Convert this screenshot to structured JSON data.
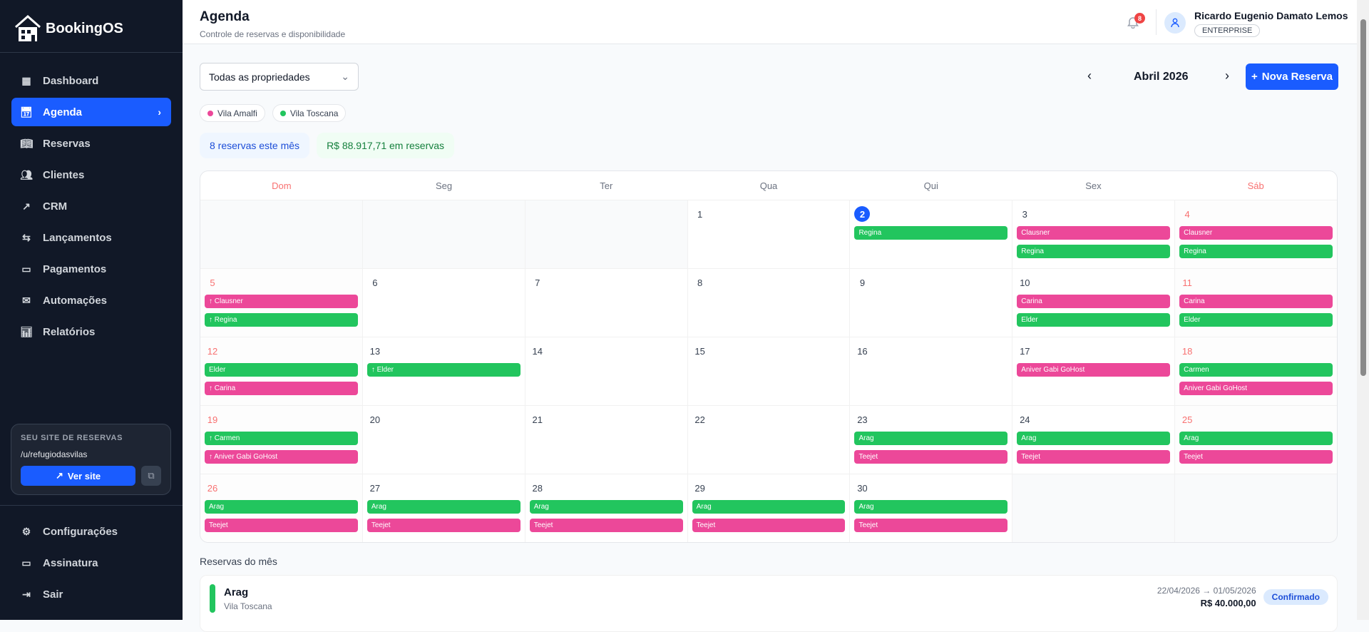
{
  "brand": {
    "name": "BookingOS"
  },
  "sidebar": {
    "items": [
      {
        "label": "Dashboard",
        "icon": "grid-icon"
      },
      {
        "label": "Agenda",
        "icon": "calendar-icon",
        "active": true
      },
      {
        "label": "Reservas",
        "icon": "book-icon"
      },
      {
        "label": "Clientes",
        "icon": "users-icon"
      },
      {
        "label": "CRM",
        "icon": "trending-icon"
      },
      {
        "label": "Lançamentos",
        "icon": "arrows-icon"
      },
      {
        "label": "Pagamentos",
        "icon": "card-icon"
      },
      {
        "label": "Automações",
        "icon": "mail-icon"
      },
      {
        "label": "Relatórios",
        "icon": "bar-chart-icon"
      }
    ],
    "site_box": {
      "title": "SEU SITE DE RESERVAS",
      "url": "/u/refugiodasvilas",
      "view_label": "Ver site"
    },
    "bottom_items": [
      {
        "label": "Configurações",
        "icon": "gear-icon"
      },
      {
        "label": "Assinatura",
        "icon": "card-icon"
      },
      {
        "label": "Sair",
        "icon": "logout-icon"
      }
    ]
  },
  "header": {
    "title": "Agenda",
    "subtitle": "Controle de reservas e disponibilidade",
    "notifications": "8",
    "user_name": "Ricardo Eugenio Damato Lemos",
    "plan": "ENTERPRISE"
  },
  "toolbar": {
    "property_select": "Todas as propriedades",
    "month": "Abril 2026",
    "new_label": "Nova Reserva"
  },
  "properties": [
    {
      "name": "Vila Amalfi",
      "color": "#ec4899"
    },
    {
      "name": "Vila Toscana",
      "color": "#22c55e"
    }
  ],
  "stats": {
    "count": "8 reservas este mês",
    "total": "R$ 88.917,71 em reservas"
  },
  "colors": {
    "accent": "#1a5cff",
    "pink": "#ec4899",
    "green": "#22c55e",
    "weekend": "#f87171"
  },
  "calendar": {
    "weekdays": [
      "Dom",
      "Seg",
      "Ter",
      "Qua",
      "Qui",
      "Sex",
      "Sáb"
    ],
    "today": 2,
    "weeks": [
      [
        null,
        null,
        null,
        {
          "n": "1",
          "ev": []
        },
        {
          "n": "2",
          "ev": [
            [
              "Regina",
              "g"
            ]
          ]
        },
        {
          "n": "3",
          "ev": [
            [
              "Clausner",
              "p"
            ],
            [
              "Regina",
              "g"
            ]
          ]
        },
        {
          "n": "4",
          "ev": [
            [
              "Clausner",
              "p"
            ],
            [
              "Regina",
              "g"
            ]
          ]
        }
      ],
      [
        {
          "n": "5",
          "ev": [
            [
              "↑ Clausner",
              "p"
            ],
            [
              "↑ Regina",
              "g"
            ]
          ]
        },
        {
          "n": "6",
          "ev": []
        },
        {
          "n": "7",
          "ev": []
        },
        {
          "n": "8",
          "ev": []
        },
        {
          "n": "9",
          "ev": []
        },
        {
          "n": "10",
          "ev": [
            [
              "Carina",
              "p"
            ],
            [
              "Elder",
              "g"
            ]
          ]
        },
        {
          "n": "11",
          "ev": [
            [
              "Carina",
              "p"
            ],
            [
              "Elder",
              "g"
            ]
          ]
        }
      ],
      [
        {
          "n": "12",
          "ev": [
            [
              "Elder",
              "g"
            ],
            [
              "↑ Carina",
              "p"
            ]
          ]
        },
        {
          "n": "13",
          "ev": [
            [
              "↑ Elder",
              "g"
            ]
          ]
        },
        {
          "n": "14",
          "ev": []
        },
        {
          "n": "15",
          "ev": []
        },
        {
          "n": "16",
          "ev": []
        },
        {
          "n": "17",
          "ev": [
            [
              "Aniver Gabi GoHost",
              "p"
            ]
          ]
        },
        {
          "n": "18",
          "ev": [
            [
              "Carmen",
              "g"
            ],
            [
              "Aniver Gabi GoHost",
              "p"
            ]
          ]
        }
      ],
      [
        {
          "n": "19",
          "ev": [
            [
              "↑ Carmen",
              "g"
            ],
            [
              "↑ Aniver Gabi GoHost",
              "p"
            ]
          ]
        },
        {
          "n": "20",
          "ev": []
        },
        {
          "n": "21",
          "ev": []
        },
        {
          "n": "22",
          "ev": []
        },
        {
          "n": "23",
          "ev": [
            [
              "Arag",
              "g"
            ],
            [
              "Teejet",
              "p"
            ]
          ]
        },
        {
          "n": "24",
          "ev": [
            [
              "Arag",
              "g"
            ],
            [
              "Teejet",
              "p"
            ]
          ]
        },
        {
          "n": "25",
          "ev": [
            [
              "Arag",
              "g"
            ],
            [
              "Teejet",
              "p"
            ]
          ]
        }
      ],
      [
        {
          "n": "26",
          "ev": [
            [
              "Arag",
              "g"
            ],
            [
              "Teejet",
              "p"
            ]
          ]
        },
        {
          "n": "27",
          "ev": [
            [
              "Arag",
              "g"
            ],
            [
              "Teejet",
              "p"
            ]
          ]
        },
        {
          "n": "28",
          "ev": [
            [
              "Arag",
              "g"
            ],
            [
              "Teejet",
              "p"
            ]
          ]
        },
        {
          "n": "29",
          "ev": [
            [
              "Arag",
              "g"
            ],
            [
              "Teejet",
              "p"
            ]
          ]
        },
        {
          "n": "30",
          "ev": [
            [
              "Arag",
              "g"
            ],
            [
              "Teejet",
              "p"
            ]
          ]
        },
        null,
        null
      ]
    ]
  },
  "list": {
    "title": "Reservas do mês",
    "items": [
      {
        "name": "Arag",
        "property": "Vila Toscana",
        "dates": "22/04/2026 → 01/05/2026",
        "price": "R$ 40.000,00",
        "status": "Confirmado"
      }
    ]
  }
}
